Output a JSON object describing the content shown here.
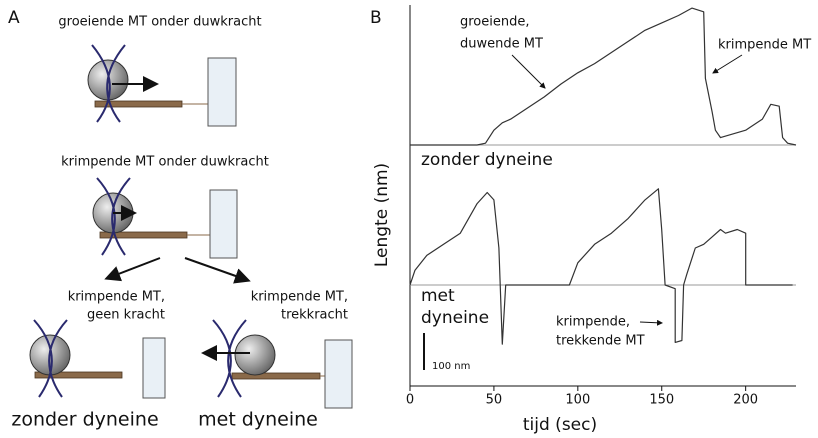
{
  "panel_a": {
    "label": "A",
    "steps": [
      "groeiende MT onder duwkracht",
      "krimpende MT onder duwkracht"
    ],
    "branches": [
      {
        "lines": [
          "krimpende MT,",
          "geen kracht"
        ],
        "condition": "zonder dyneine"
      },
      {
        "lines": [
          "krimpende MT,",
          "trekkracht"
        ],
        "condition": "met dyneine"
      }
    ]
  },
  "chart_data": {
    "type": "line",
    "label": "B",
    "x_label": "tijd (sec)",
    "y_label": "Lengte (nm)",
    "xlim": [
      0,
      230
    ],
    "xticks": [
      0,
      50,
      100,
      150,
      200
    ],
    "series": [
      {
        "name": "zonder dyneine",
        "color": "#333333",
        "x": [
          0,
          40,
          45,
          50,
          55,
          60,
          70,
          80,
          90,
          100,
          110,
          120,
          130,
          140,
          150,
          160,
          168,
          175,
          176,
          180,
          182,
          185,
          200,
          210,
          215,
          220,
          222,
          225,
          230
        ],
        "values": [
          0,
          0,
          5,
          40,
          60,
          70,
          100,
          130,
          165,
          195,
          220,
          250,
          280,
          310,
          330,
          350,
          370,
          360,
          180,
          90,
          40,
          20,
          40,
          70,
          110,
          105,
          20,
          5,
          0
        ]
      },
      {
        "name": "met dyneine",
        "color": "#333333",
        "x": [
          0,
          3,
          10,
          20,
          30,
          40,
          46,
          50,
          53,
          55,
          57,
          95,
          100,
          110,
          120,
          130,
          140,
          148,
          150,
          152,
          158,
          158,
          162,
          163,
          165,
          170,
          175,
          180,
          185,
          188,
          195,
          200,
          200,
          228
        ],
        "values": [
          0,
          40,
          80,
          110,
          140,
          220,
          250,
          230,
          100,
          -160,
          0,
          0,
          60,
          110,
          140,
          180,
          230,
          260,
          150,
          0,
          -10,
          -155,
          -150,
          0,
          30,
          100,
          110,
          130,
          150,
          140,
          150,
          140,
          0,
          0
        ]
      }
    ],
    "annotations": [
      {
        "lines": [
          "groeiende,",
          "duwende MT"
        ]
      },
      {
        "lines": [
          "krimpende MT"
        ]
      },
      {
        "lines": [
          "krimpende,",
          "trekkende MT"
        ]
      }
    ],
    "scale_bar": {
      "value": 100,
      "label": "100 nm"
    }
  }
}
